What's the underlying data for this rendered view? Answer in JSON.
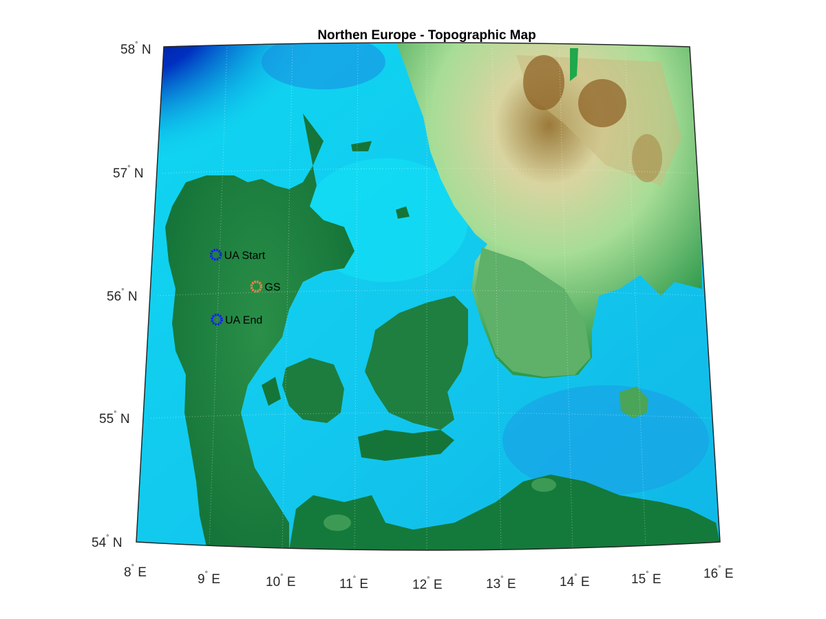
{
  "title": "Northen Europe - Topographic Map",
  "lat_ticks": [
    {
      "deg": "58",
      "hemi": "N",
      "value": 58
    },
    {
      "deg": "57",
      "hemi": "N",
      "value": 57
    },
    {
      "deg": "56",
      "hemi": "N",
      "value": 56
    },
    {
      "deg": "55",
      "hemi": "N",
      "value": 55
    },
    {
      "deg": "54",
      "hemi": "N",
      "value": 54
    }
  ],
  "lon_ticks": [
    {
      "deg": "8",
      "hemi": "E",
      "value": 8
    },
    {
      "deg": "9",
      "hemi": "E",
      "value": 9
    },
    {
      "deg": "10",
      "hemi": "E",
      "value": 10
    },
    {
      "deg": "11",
      "hemi": "E",
      "value": 11
    },
    {
      "deg": "12",
      "hemi": "E",
      "value": 12
    },
    {
      "deg": "13",
      "hemi": "E",
      "value": 13
    },
    {
      "deg": "14",
      "hemi": "E",
      "value": 14
    },
    {
      "deg": "15",
      "hemi": "E",
      "value": 15
    },
    {
      "deg": "16",
      "hemi": "E",
      "value": 16
    }
  ],
  "markers": [
    {
      "label": "UA Start",
      "lat": 56.28,
      "lon": 8.95,
      "color": "#1a1aff"
    },
    {
      "label": "GS",
      "lat": 56.0,
      "lon": 9.55,
      "color": "#ff7f3f"
    },
    {
      "label": "UA End",
      "lat": 55.75,
      "lon": 9.0,
      "color": "#1a1aff"
    }
  ],
  "colors": {
    "sea_deep": "#00008f",
    "sea": "#11c7e9",
    "sea_shallow": "#0ff0ff",
    "land_low": "#127a3c",
    "land_mid": "#9fd88f",
    "land_high": "#8a5a1d"
  }
}
